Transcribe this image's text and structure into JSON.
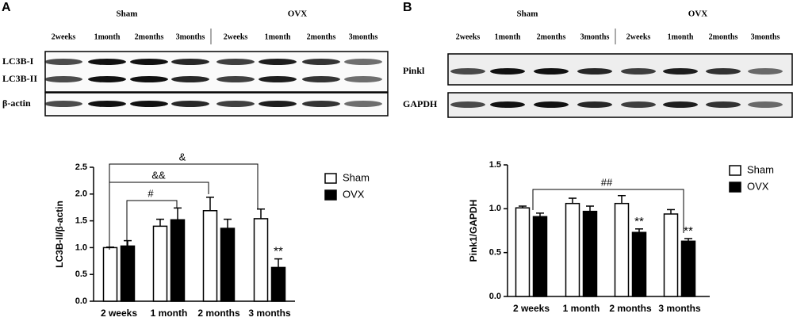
{
  "panels": [
    "A",
    "B"
  ],
  "blots": [
    {
      "groups": [
        "Sham",
        "OVX"
      ],
      "lanes": [
        "2weeks",
        "1month",
        "2months",
        "3months",
        "2weeks",
        "1month",
        "2months",
        "3months"
      ],
      "rows": [
        "LC3B-I",
        "LC3B-II",
        "β-actin"
      ]
    },
    {
      "groups": [
        "Sham",
        "OVX"
      ],
      "lanes": [
        "2weeks",
        "1month",
        "2months",
        "3months",
        "2weeks",
        "1month",
        "2months",
        "3months"
      ],
      "rows": [
        "Pinkl",
        "GAPDH"
      ]
    }
  ],
  "chart_data": [
    {
      "type": "bar",
      "y_label": "LC3B-II/β-actin",
      "categories": [
        "2 weeks",
        "1 month",
        "2 months",
        "3 months"
      ],
      "series": [
        {
          "name": "Sham",
          "color": "#ffffff",
          "values": [
            1.0,
            1.4,
            1.69,
            1.54
          ],
          "errors": [
            0.01,
            0.13,
            0.25,
            0.18
          ]
        },
        {
          "name": "OVX",
          "color": "#000000",
          "values": [
            1.03,
            1.52,
            1.36,
            0.63
          ],
          "errors": [
            0.1,
            0.22,
            0.17,
            0.16
          ]
        }
      ],
      "ylim": [
        0,
        2.5
      ],
      "yticks": [
        {
          "value": 0,
          "label": "0.0"
        },
        0.5,
        {
          "value": 1,
          "label": "1.0"
        },
        1.5,
        {
          "value": 2,
          "label": "2.0"
        },
        2.5
      ],
      "annotations": [
        "&",
        "&&",
        "#",
        "**"
      ]
    },
    {
      "type": "bar",
      "y_label": "Pink1/GAPDH",
      "categories": [
        "2 weeks",
        "1 month",
        "2 months",
        "3 months"
      ],
      "series": [
        {
          "name": "Sham",
          "color": "#ffffff",
          "values": [
            1.01,
            1.06,
            1.06,
            0.94
          ],
          "errors": [
            0.02,
            0.06,
            0.09,
            0.05
          ]
        },
        {
          "name": "OVX",
          "color": "#000000",
          "values": [
            0.91,
            0.97,
            0.73,
            0.63
          ],
          "errors": [
            0.04,
            0.06,
            0.04,
            0.03
          ]
        }
      ],
      "ylim": [
        0,
        1.5
      ],
      "yticks": [
        {
          "value": 0,
          "label": "0.0"
        },
        0.5,
        {
          "value": 1,
          "label": "1.0"
        },
        1.5
      ],
      "annotations": [
        "##",
        "**",
        "**"
      ]
    }
  ]
}
